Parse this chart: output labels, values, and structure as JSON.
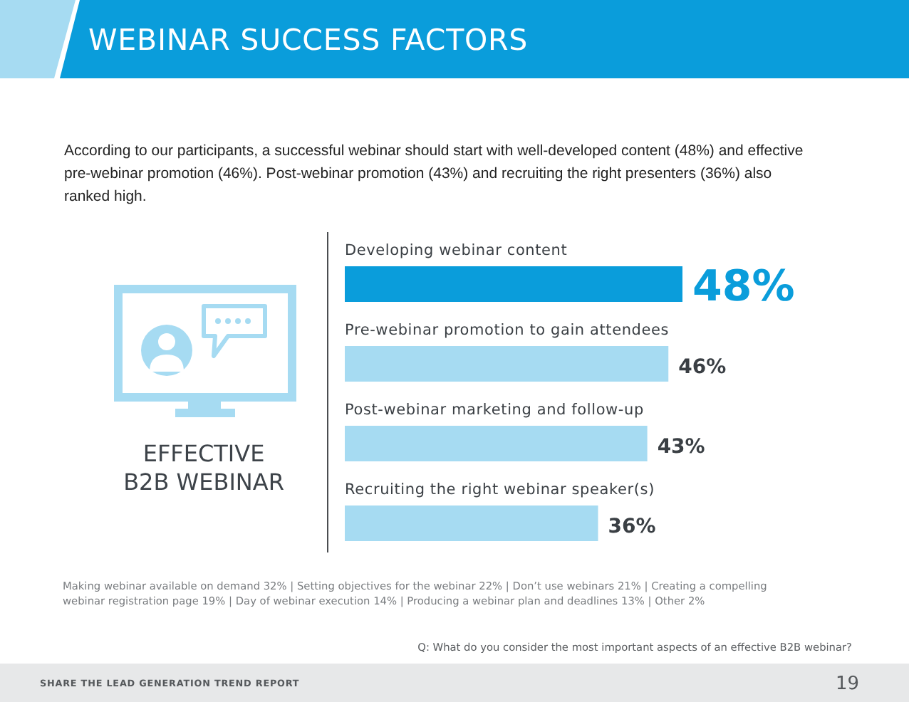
{
  "chart_data": {
    "type": "bar",
    "orientation": "horizontal",
    "title": "WEBINAR SUCCESS FACTORS",
    "subtitle": "According to our participants, a successful webinar should start with well-developed content (48%) and effective pre-webinar promotion (46%). Post-webinar promotion (43%) and recruiting the right presenters (36%) also ranked high.",
    "categories": [
      "Developing webinar content",
      "Pre-webinar promotion to gain attendees",
      "Post-webinar marketing and follow-up",
      "Recruiting the right webinar speaker(s)"
    ],
    "values": [
      48,
      46,
      43,
      36
    ],
    "colors": [
      "#0a9ddb",
      "#a6dbf2",
      "#a6dbf2",
      "#a6dbf2"
    ],
    "value_labels": [
      "48%",
      "46%",
      "43%",
      "36%"
    ],
    "annotations": [
      "EFFECTIVE B2B WEBINAR",
      "Making webinar available on demand 32% | Setting objectives for the webinar 22% | Don’t use webinars 21% | Creating a compelling webinar registration page 19% | Day of webinar execution 14% | Producing a webinar plan and deadlines 13% | Other 2%",
      "Q: What do you consider the most important aspects of an effective B2B webinar?",
      "SHARE THE LEAD GENERATION TREND REPORT",
      "19"
    ]
  }
}
